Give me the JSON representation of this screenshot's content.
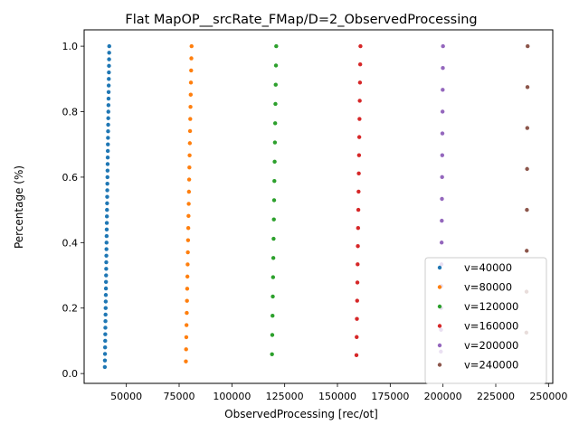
{
  "chart_data": {
    "type": "scatter",
    "title": "Flat MapOP__srcRate_FMap/D=2_ObservedProcessing",
    "xlabel": "ObservedProcessing [rec/ot]",
    "ylabel": "Percentage (%)",
    "xlim": [
      30000,
      252000
    ],
    "ylim": [
      -0.03,
      1.05
    ],
    "xticks": [
      50000,
      75000,
      100000,
      125000,
      150000,
      175000,
      200000,
      225000,
      250000
    ],
    "xtick_labels": [
      "50000",
      "75000",
      "100000",
      "125000",
      "150000",
      "175000",
      "200000",
      "225000",
      "250000"
    ],
    "yticks": [
      0.0,
      0.2,
      0.4,
      0.6,
      0.8,
      1.0
    ],
    "ytick_labels": [
      "0.0",
      "0.2",
      "0.4",
      "0.6",
      "0.8",
      "1.0"
    ],
    "legend_position": "lower right",
    "series": [
      {
        "name": "v=40000",
        "color": "#1f77b4",
        "x_start": 39800,
        "x_end": 41900,
        "y_start": 0.02,
        "y_end": 1.0,
        "count": 50
      },
      {
        "name": "v=80000",
        "color": "#ff7f0e",
        "x_start": 78200,
        "x_end": 80900,
        "y_start": 0.037,
        "y_end": 1.0,
        "count": 27
      },
      {
        "name": "v=120000",
        "color": "#2ca02c",
        "x_start": 119000,
        "x_end": 121000,
        "y_start": 0.059,
        "y_end": 1.0,
        "count": 17
      },
      {
        "name": "v=160000",
        "color": "#d62728",
        "x_start": 159000,
        "x_end": 160900,
        "y_start": 0.056,
        "y_end": 1.0,
        "count": 18
      },
      {
        "name": "v=200000",
        "color": "#9467bd",
        "x_start": 199000,
        "x_end": 200000,
        "y_start": 0.067,
        "y_end": 1.0,
        "count": 15
      },
      {
        "name": "v=240000",
        "color": "#8c564b",
        "x_start": 239500,
        "x_end": 240100,
        "y_start": 0.125,
        "y_end": 1.0,
        "count": 8
      }
    ]
  }
}
